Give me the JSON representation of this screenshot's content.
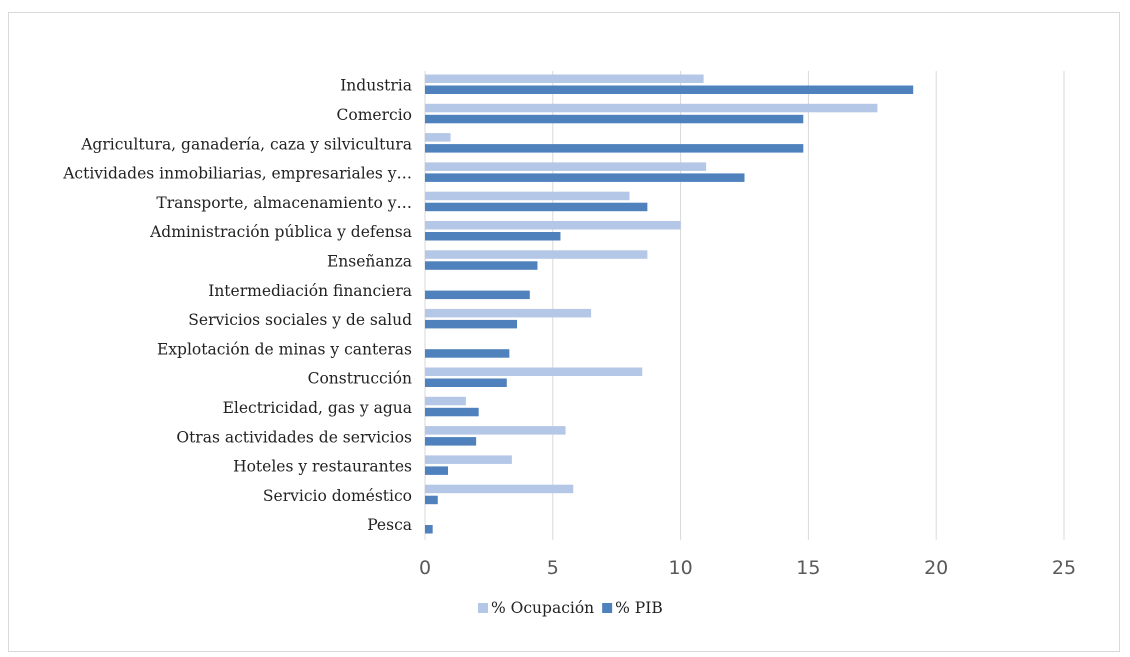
{
  "chart_data": {
    "type": "bar",
    "orientation": "horizontal",
    "categories": [
      "Industria",
      "Comercio",
      "Agricultura, ganadería, caza y silvicultura",
      "Actividades inmobiliarias, empresariales y…",
      "Transporte, almacenamiento y…",
      "Administración pública y defensa",
      "Enseñanza",
      "Intermediación financiera",
      "Servicios sociales y de salud",
      "Explotación de minas y canteras",
      "Construcción",
      "Electricidad, gas y agua",
      "Otras actividades de servicios",
      "Hoteles y restaurantes",
      "Servicio doméstico",
      "Pesca"
    ],
    "series": [
      {
        "name": "% Ocupación",
        "color": "#b4c7e7",
        "values": [
          10.9,
          17.7,
          1.0,
          11.0,
          8.0,
          10.0,
          8.7,
          0,
          6.5,
          0,
          8.5,
          1.6,
          5.5,
          3.4,
          5.8,
          0
        ]
      },
      {
        "name": "% PIB",
        "color": "#4f81bd",
        "values": [
          19.1,
          14.8,
          14.8,
          12.5,
          8.7,
          5.3,
          4.4,
          4.1,
          3.6,
          3.3,
          3.2,
          2.1,
          2.0,
          0.9,
          0.5,
          0.3
        ]
      }
    ],
    "xlim": [
      0,
      25
    ],
    "xticks": [
      "0",
      "5",
      "10",
      "15",
      "20",
      "25"
    ],
    "grid": true,
    "legend_position": "bottom"
  }
}
